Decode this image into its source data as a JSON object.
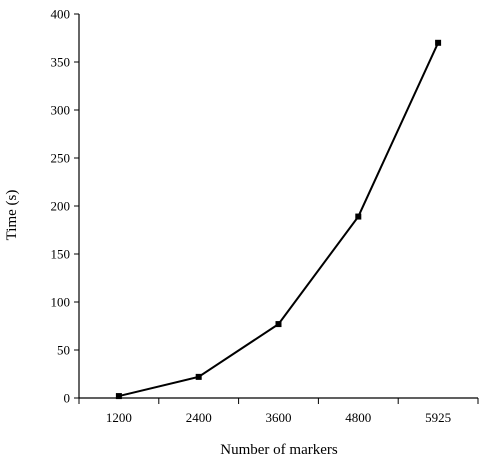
{
  "chart_data": {
    "type": "line",
    "title": "",
    "xlabel": "Number of markers",
    "ylabel": "Time (s)",
    "categories": [
      "1200",
      "2400",
      "3600",
      "4800",
      "5925"
    ],
    "series": [
      {
        "values": [
          2,
          22,
          77,
          189,
          370
        ]
      }
    ],
    "ylim": [
      0,
      400
    ],
    "yticks": [
      0,
      50,
      100,
      150,
      200,
      250,
      300,
      350,
      400
    ],
    "grid": false,
    "legend": "none",
    "colors": {
      "line": "#000000",
      "marker": "#000000",
      "axis": "#000000"
    }
  }
}
